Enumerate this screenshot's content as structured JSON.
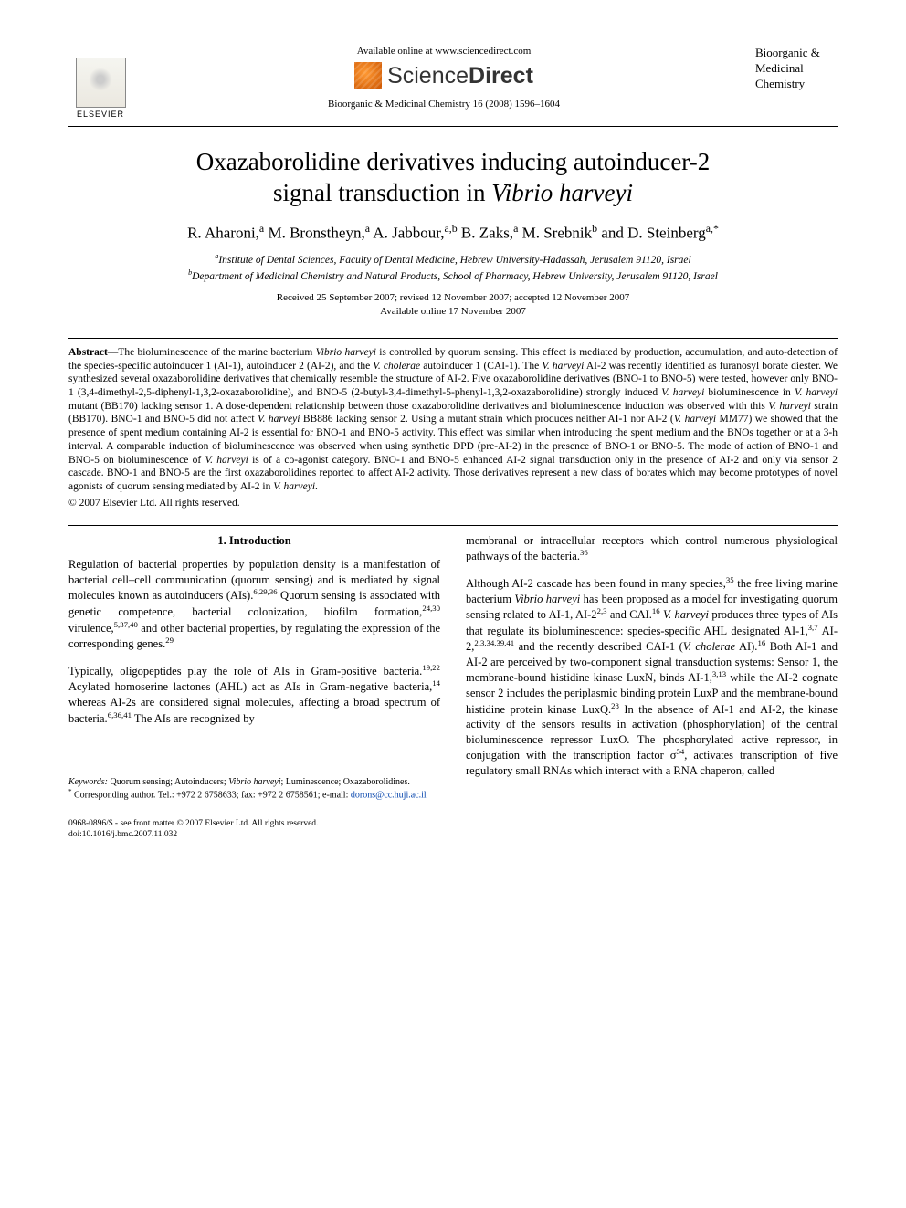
{
  "header": {
    "elsevier_label": "ELSEVIER",
    "available_online": "Available online at www.sciencedirect.com",
    "sd_left": "Science",
    "sd_right": "Direct",
    "journal_ref": "Bioorganic & Medicinal Chemistry 16 (2008) 1596–1604",
    "journal_side_1": "Bioorganic &",
    "journal_side_2": "Medicinal",
    "journal_side_3": "Chemistry"
  },
  "title_line1": "Oxazaborolidine derivatives inducing autoinducer-2",
  "title_line2_a": "signal transduction in ",
  "title_line2_b": "Vibrio harveyi",
  "authors_html": "R. Aharoni,<span class='sup'>a</span> M. Bronstheyn,<span class='sup'>a</span> A. Jabbour,<span class='sup'>a,b</span> B. Zaks,<span class='sup'>a</span> M. Srebnik<span class='sup'>b</span> and D. Steinberg<span class='sup'>a,*</span>",
  "affil_a": "Institute of Dental Sciences, Faculty of Dental Medicine, Hebrew University-Hadassah, Jerusalem 91120, Israel",
  "affil_b": "Department of Medicinal Chemistry and Natural Products, School of Pharmacy, Hebrew University, Jerusalem 91120, Israel",
  "dates_1": "Received 25 September 2007; revised 12 November 2007; accepted 12 November 2007",
  "dates_2": "Available online 17 November 2007",
  "abstract_label": "Abstract—",
  "abstract_body": "The bioluminescence of the marine bacterium <span class='ital'>Vibrio harveyi</span> is controlled by quorum sensing. This effect is mediated by production, accumulation, and auto-detection of the species-specific autoinducer 1 (AI-1), autoinducer 2 (AI-2), and the <span class='ital'>V. cholerae</span> autoinducer 1 (CAI-1). The <span class='ital'>V. harveyi</span> AI-2 was recently identified as furanosyl borate diester. We synthesized several oxazaborolidine derivatives that chemically resemble the structure of AI-2. Five oxazaborolidine derivatives (BNO-1 to BNO-5) were tested, however only BNO-1 (3,4-dimethyl-2,5-diphenyl-1,3,2-oxazaborolidine), and BNO-5 (2-butyl-3,4-dimethyl-5-phenyl-1,3,2-oxazaborolidine) strongly induced <span class='ital'>V. harveyi</span> bioluminescence in <span class='ital'>V. harveyi</span> mutant (BB170) lacking sensor 1. A dose-dependent relationship between those oxazaborolidine derivatives and bioluminescence induction was observed with this <span class='ital'>V. harveyi</span> strain (BB170). BNO-1 and BNO-5 did not affect <span class='ital'>V. harveyi</span> BB886 lacking sensor 2. Using a mutant strain which produces neither AI-1 nor AI-2 (<span class='ital'>V. harveyi</span> MM77) we showed that the presence of spent medium containing AI-2 is essential for BNO-1 and BNO-5 activity. This effect was similar when introducing the spent medium and the BNOs together or at a 3-h interval. A comparable induction of bioluminescence was observed when using synthetic DPD (pre-AI-2) in the presence of BNO-1 or BNO-5. The mode of action of BNO-1 and BNO-5 on bioluminescence of <span class='ital'>V. harveyi</span> is of a co-agonist category. BNO-1 and BNO-5 enhanced AI-2 signal transduction only in the presence of AI-2 and only via sensor 2 cascade. BNO-1 and BNO-5 are the first oxazaborolidines reported to affect AI-2 activity. Those derivatives represent a new class of borates which may become prototypes of novel agonists of quorum sensing mediated by AI-2 in <span class='ital'>V. harveyi</span>.",
  "copyright": "© 2007 Elsevier Ltd. All rights reserved.",
  "section1_heading": "1. Introduction",
  "col1_p1": "Regulation of bacterial properties by population density is a manifestation of bacterial cell–cell communication (quorum sensing) and is mediated by signal molecules known as autoinducers (AIs).<span class='sup'>6,29,36</span> Quorum sensing is associated with genetic competence, bacterial colonization, biofilm formation,<span class='sup'>24,30</span> virulence,<span class='sup'>5,37,40</span> and other bacterial properties, by regulating the expression of the corresponding genes.<span class='sup'>29</span>",
  "col1_p2": "Typically, oligopeptides play the role of AIs in Gram-positive bacteria.<span class='sup'>19,22</span> Acylated homoserine lactones (AHL) act as AIs in Gram-negative bacteria,<span class='sup'>14</span> whereas AI-2s are considered signal molecules, affecting a broad spectrum of bacteria.<span class='sup'>6,36,41</span> The AIs are recognized by",
  "col2_p1": "membranal or intracellular receptors which control numerous physiological pathways of the bacteria.<span class='sup'>36</span>",
  "col2_p2": "Although AI-2 cascade has been found in many species,<span class='sup'>35</span> the free living marine bacterium <span class='ital'>Vibrio harveyi</span> has been proposed as a model for investigating quorum sensing related to AI-1, AI-2<span class='sup'>2,3</span> and CAI.<span class='sup'>16</span> <span class='ital'>V. harveyi</span> produces three types of AIs that regulate its bioluminescence: species-specific AHL designated AI-1,<span class='sup'>3,7</span> AI-2,<span class='sup'>2,3,34,39,41</span> and the recently described CAI-1 (<span class='ital'>V. cholerae</span> AI).<span class='sup'>16</span> Both AI-1 and AI-2 are perceived by two-component signal transduction systems: Sensor 1, the membrane-bound histidine kinase LuxN, binds AI-1,<span class='sup'>3,13</span> while the AI-2 cognate sensor 2 includes the periplasmic binding protein LuxP and the membrane-bound histidine protein kinase LuxQ.<span class='sup'>28</span> In the absence of AI-1 and AI-2, the kinase activity of the sensors results in activation (phosphorylation) of the central bioluminescence repressor LuxO. The phosphorylated active repressor, in conjugation with the transcription factor σ<span class='sup'>54</span>, activates transcription of five regulatory small RNAs which interact with a RNA chaperon, called",
  "footnote_kw_label": "Keywords:",
  "footnote_kw": " Quorum sensing; Autoinducers; <span class='ital'>Vibrio harveyi</span>; Luminescence; Oxazaborolidines.",
  "footnote_corr": "Corresponding author. Tel.: +972 2 6758633; fax: +972 2 6758561; e-mail: ",
  "footnote_email": "dorons@cc.huji.ac.il",
  "bottom_left_1": "0968-0896/$ - see front matter © 2007 Elsevier Ltd. All rights reserved.",
  "bottom_left_2": "doi:10.1016/j.bmc.2007.11.032"
}
